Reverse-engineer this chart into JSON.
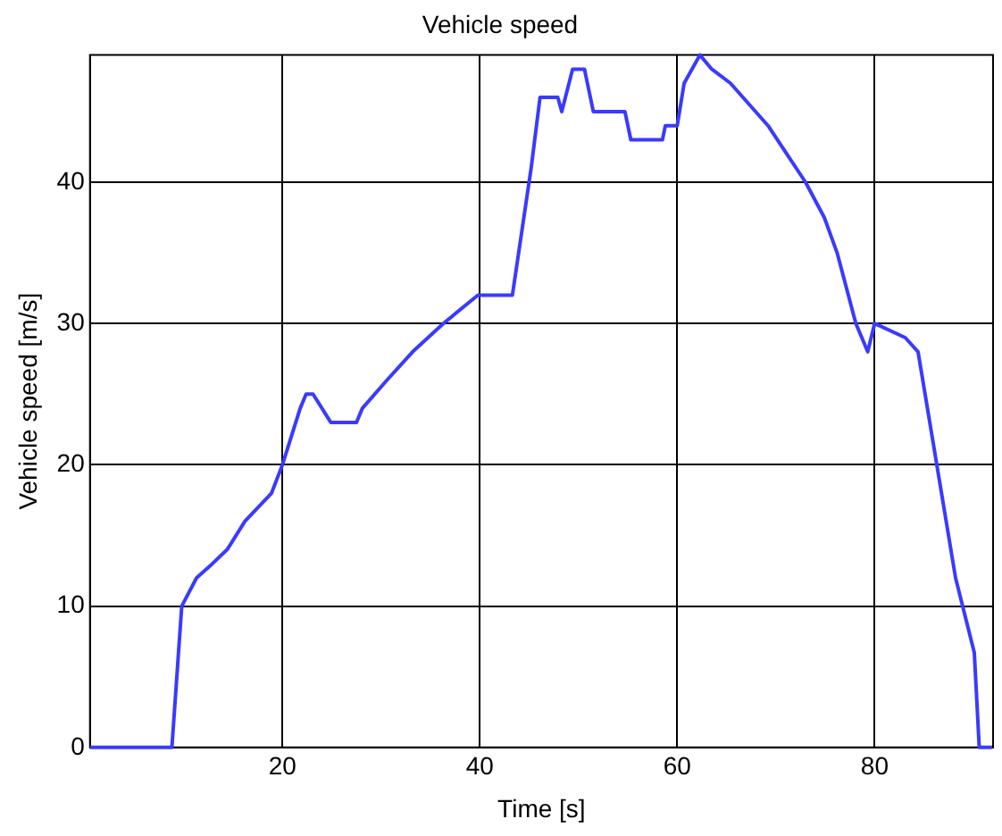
{
  "chart_data": {
    "type": "line",
    "title": "Vehicle speed",
    "xlabel": "Time [s]",
    "ylabel": "Vehicle speed [m/s]",
    "x": [
      0.5,
      8.8,
      9.8,
      11.3,
      12.9,
      14.4,
      16.2,
      18.9,
      20,
      21.8,
      22.4,
      23.1,
      24.9,
      27.5,
      28.1,
      30.6,
      33.2,
      36.3,
      39.8,
      43.3,
      45.2,
      46.1,
      47.9,
      48.3,
      49.4,
      50.6,
      51.5,
      54.7,
      55.3,
      58.5,
      58.8,
      60,
      60.7,
      62.3,
      63.5,
      65.4,
      67.3,
      69.2,
      71.1,
      73,
      74.9,
      76.2,
      78.1,
      79.3,
      80,
      83.1,
      84.4,
      86.3,
      88.2,
      90.1,
      90.6,
      91.9
    ],
    "series": [
      {
        "color": "#3a3aff",
        "values": [
          0,
          0,
          10,
          12,
          13,
          14,
          16,
          18,
          20,
          24,
          25,
          25,
          23,
          23,
          24,
          26,
          28,
          30,
          32,
          32,
          41,
          46,
          46,
          45,
          48,
          48,
          45,
          45,
          43,
          43,
          44,
          44,
          47,
          49,
          48,
          47,
          45.5,
          44,
          42,
          40,
          37.5,
          35,
          30,
          28,
          30,
          29,
          28,
          20,
          12,
          6.7,
          0,
          0
        ]
      }
    ],
    "xlim": [
      0.5,
      92
    ],
    "ylim": [
      0,
      49
    ],
    "xticks": [
      20,
      40,
      60,
      80
    ],
    "yticks": [
      0,
      10,
      20,
      30,
      40
    ],
    "grid": true,
    "legend": false,
    "marker": "none",
    "line_style": "solid"
  }
}
